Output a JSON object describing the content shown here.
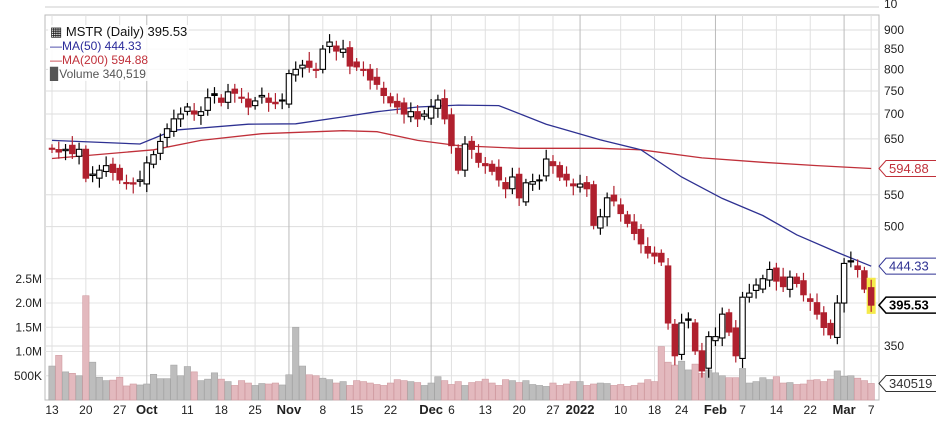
{
  "chart_data": {
    "type": "candlestick",
    "title": "MSTR (Daily) 395.53",
    "legend": [
      {
        "label": "MSTR (Daily) 395.53",
        "icon": "candlestick-icon"
      },
      {
        "label": "MA(50) 444.33",
        "color": "#2e3192"
      },
      {
        "label": "MA(200) 594.88",
        "color": "#c0303a"
      },
      {
        "label": "Volume 340,519",
        "icon": "volume-bars-icon"
      }
    ],
    "legend_position": "top-left",
    "price_scale": "log",
    "ylim": [
      320,
      930
    ],
    "price_ticks": [
      "900",
      "850",
      "800",
      "750",
      "700",
      "650",
      "550",
      "500",
      "350"
    ],
    "top_panel_tick": "10",
    "volume_ticks": [
      {
        "label": "2.5M",
        "v": 2500
      },
      {
        "label": "2.0M",
        "v": 2000
      },
      {
        "label": "1.5M",
        "v": 1500
      },
      {
        "label": "1.0M",
        "v": 1000
      },
      {
        "label": "500K",
        "v": 500
      }
    ],
    "price_tags": [
      {
        "label": "594.88",
        "value": 594.88,
        "color": "#c0303a",
        "bold": false
      },
      {
        "label": "444.33",
        "value": 444.33,
        "color": "#2e3192",
        "bold": false
      },
      {
        "label": "395.53",
        "value": 395.53,
        "color": "#000000",
        "bold": true
      }
    ],
    "volume_tag": {
      "label": "340519",
      "value": 340.519
    },
    "x_labels": [
      {
        "t": "13",
        "i": 0
      },
      {
        "t": "20",
        "i": 5
      },
      {
        "t": "27",
        "i": 10
      },
      {
        "t": "Oct",
        "i": 14,
        "b": true
      },
      {
        "t": "11",
        "i": 20
      },
      {
        "t": "18",
        "i": 25
      },
      {
        "t": "25",
        "i": 30
      },
      {
        "t": "Nov",
        "i": 35,
        "b": true
      },
      {
        "t": "8",
        "i": 40
      },
      {
        "t": "15",
        "i": 45
      },
      {
        "t": "22",
        "i": 50
      },
      {
        "t": "Dec",
        "i": 56,
        "b": true
      },
      {
        "t": "6",
        "i": 59
      },
      {
        "t": "13",
        "i": 64
      },
      {
        "t": "20",
        "i": 69
      },
      {
        "t": "27",
        "i": 74
      },
      {
        "t": "2022",
        "i": 78,
        "b": true
      },
      {
        "t": "10",
        "i": 84
      },
      {
        "t": "18",
        "i": 89
      },
      {
        "t": "24",
        "i": 93
      },
      {
        "t": "Feb",
        "i": 98,
        "b": true
      },
      {
        "t": "7",
        "i": 102
      },
      {
        "t": "14",
        "i": 107
      },
      {
        "t": "22",
        "i": 112
      },
      {
        "t": "Mar",
        "i": 117,
        "b": true
      },
      {
        "t": "7",
        "i": 121
      }
    ],
    "close": [
      632,
      625,
      630,
      622,
      630,
      578,
      585,
      592,
      600,
      588,
      575,
      570,
      568,
      575,
      605,
      620,
      645,
      670,
      690,
      700,
      715,
      700,
      705,
      735,
      740,
      725,
      748,
      745,
      735,
      715,
      728,
      740,
      725,
      722,
      730,
      790,
      800,
      810,
      805,
      800,
      850,
      868,
      845,
      850,
      808,
      806,
      800,
      775,
      765,
      740,
      724,
      715,
      700,
      705,
      690,
      700,
      715,
      730,
      690,
      637,
      592,
      640,
      630,
      606,
      600,
      590,
      575,
      560,
      580,
      545,
      570,
      572,
      575,
      612,
      600,
      580,
      575,
      565,
      568,
      560,
      502,
      515,
      545,
      540,
      520,
      505,
      490,
      475,
      462,
      458,
      450,
      375,
      340,
      375,
      378,
      345,
      325,
      360,
      360,
      385,
      365,
      340,
      405,
      410,
      420,
      428,
      440,
      425,
      418,
      430,
      422,
      408,
      400,
      385,
      370,
      362,
      398,
      448,
      450,
      440,
      415,
      395.53
    ],
    "volume_k": [
      700,
      920,
      580,
      550,
      500,
      2150,
      780,
      470,
      400,
      410,
      470,
      290,
      330,
      310,
      330,
      530,
      440,
      440,
      720,
      500,
      690,
      580,
      400,
      430,
      560,
      430,
      380,
      300,
      400,
      350,
      300,
      340,
      330,
      350,
      310,
      520,
      1500,
      700,
      520,
      500,
      450,
      420,
      350,
      380,
      300,
      400,
      380,
      350,
      320,
      300,
      350,
      420,
      400,
      380,
      360,
      300,
      350,
      480,
      400,
      320,
      380,
      300,
      360,
      380,
      430,
      350,
      300,
      420,
      400,
      360,
      400,
      320,
      300,
      280,
      350,
      300,
      330,
      380,
      380,
      300,
      330,
      350,
      340,
      300,
      320,
      280,
      300,
      350,
      420,
      380,
      1100,
      780,
      720,
      800,
      620,
      740,
      550,
      620,
      560,
      500,
      460,
      460,
      650,
      350,
      380,
      460,
      420,
      480,
      350,
      360,
      320,
      330,
      410,
      420,
      380,
      430,
      600,
      490,
      500,
      450,
      400,
      341
    ],
    "ma50": [
      [
        0,
        647
      ],
      [
        13,
        640
      ],
      [
        18,
        667
      ],
      [
        29,
        679
      ],
      [
        36,
        680
      ],
      [
        43,
        694
      ],
      [
        48,
        705
      ],
      [
        54,
        715
      ],
      [
        60,
        719
      ],
      [
        66,
        718
      ],
      [
        73,
        679
      ],
      [
        81,
        648
      ],
      [
        87,
        629
      ],
      [
        93,
        580
      ],
      [
        99,
        544
      ],
      [
        105,
        517
      ],
      [
        110,
        488
      ],
      [
        116,
        463
      ],
      [
        121,
        444.33
      ]
    ],
    "ma200": [
      [
        0,
        613
      ],
      [
        15,
        629
      ],
      [
        22,
        647
      ],
      [
        31,
        660
      ],
      [
        43,
        666
      ],
      [
        48,
        664
      ],
      [
        54,
        647
      ],
      [
        60,
        637
      ],
      [
        69,
        632
      ],
      [
        81,
        632
      ],
      [
        87,
        629
      ],
      [
        96,
        614
      ],
      [
        105,
        606
      ],
      [
        113,
        600
      ],
      [
        121,
        594.88
      ]
    ]
  }
}
